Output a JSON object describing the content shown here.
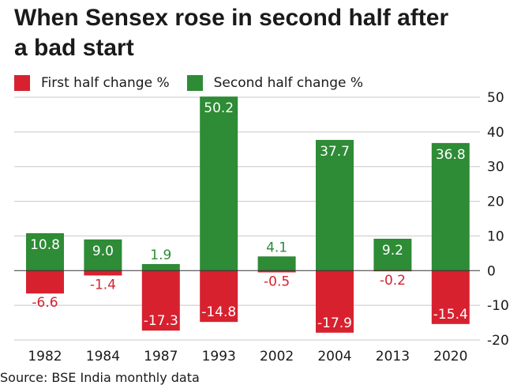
{
  "title": "When Sensex rose in second half after a bad start",
  "source": "Source: BSE India monthly data",
  "colors": {
    "first_half": "#d7212f",
    "second_half": "#2e8b36",
    "grid": "#c8c8c8",
    "zero_line": "#333333"
  },
  "legend": [
    {
      "label": "First half change %",
      "color": "#d7212f"
    },
    {
      "label": "Second half change %",
      "color": "#2e8b36"
    }
  ],
  "chart_data": {
    "type": "bar",
    "title": "When Sensex rose in second half after a bad start",
    "categories": [
      "1982",
      "1984",
      "1987",
      "1993",
      "2002",
      "2004",
      "2013",
      "2020"
    ],
    "series": [
      {
        "name": "First half change %",
        "values": [
          -6.6,
          -1.4,
          -17.3,
          -14.8,
          -0.5,
          -17.9,
          -0.2,
          -15.4
        ]
      },
      {
        "name": "Second half change %",
        "values": [
          10.8,
          9.0,
          1.9,
          50.2,
          4.1,
          37.7,
          9.2,
          36.8
        ]
      }
    ],
    "data_labels": {
      "first_half": [
        "-6.6",
        "-1.4",
        "-17.3",
        "-14.8",
        "-0.5",
        "-17.9",
        "-0.2",
        "-15.4"
      ],
      "second_half": [
        "10.8",
        "9.0",
        "1.9",
        "50.2",
        "4.1",
        "37.7",
        "9.2",
        "36.8"
      ]
    },
    "yticks": [
      "50",
      "40",
      "30",
      "20",
      "10",
      "0",
      "-10",
      "-20"
    ],
    "ylim": [
      -20,
      50
    ],
    "stacked_around_zero": true,
    "grid": true,
    "y_axis_side": "right",
    "legend_position": "top-left"
  }
}
